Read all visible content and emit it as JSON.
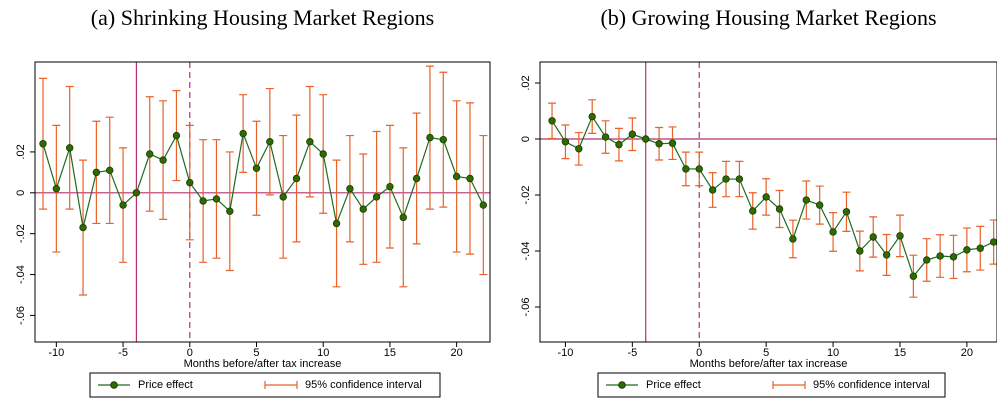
{
  "chart_data": [
    {
      "type": "line",
      "title": "(a) Shrinking Housing Market Regions",
      "x_label": "Months before/after tax increase",
      "x": [
        -11,
        -10,
        -9,
        -8,
        -7,
        -6,
        -5,
        -4,
        -3,
        -2,
        -1,
        0,
        1,
        2,
        3,
        4,
        5,
        6,
        7,
        8,
        9,
        10,
        11,
        12,
        13,
        14,
        15,
        16,
        17,
        18,
        19,
        20,
        21,
        22
      ],
      "series": [
        {
          "name": "Price effect",
          "color": "#1f6b1f",
          "values": [
            0.024,
            0.002,
            0.022,
            -0.017,
            0.01,
            0.011,
            -0.006,
            0,
            0.019,
            0.016,
            0.028,
            0.005,
            -0.004,
            -0.003,
            -0.009,
            0.029,
            0.012,
            0.025,
            -0.002,
            0.007,
            0.025,
            0.019,
            -0.015,
            0.002,
            -0.008,
            -0.002,
            0.003,
            -0.012,
            0.007,
            0.027,
            0.026,
            0.008,
            0.007,
            -0.006
          ]
        },
        {
          "name": "95% confidence interval",
          "color": "#e8622a",
          "errors": [
            0.032,
            0.031,
            0.03,
            0.033,
            0.025,
            0.026,
            0.028,
            0,
            0.028,
            0.029,
            0.022,
            0.028,
            0.03,
            0.029,
            0.029,
            0.019,
            0.023,
            0.026,
            0.03,
            0.031,
            0.027,
            0.029,
            0.031,
            0.026,
            0.027,
            0.032,
            0.03,
            0.034,
            0.032,
            0.035,
            0.033,
            0.037,
            0.037,
            0.034
          ]
        }
      ],
      "xlim": [
        -11.6,
        22.5
      ],
      "xticks": [
        -10,
        -5,
        0,
        5,
        10,
        15,
        20
      ],
      "ylim": [
        -0.073,
        0.064
      ],
      "yticks": [
        {
          "value": -0.06,
          "label": "-.06"
        },
        {
          "value": -0.04,
          "label": "-.04"
        },
        {
          "value": -0.02,
          "label": "-.02"
        },
        0,
        {
          "value": 0.02,
          "label": ".02"
        }
      ],
      "vlines": [
        {
          "value": -4,
          "style": "solid"
        },
        {
          "value": 0,
          "style": "dashed"
        }
      ],
      "hline": 0,
      "refcolor": "#b5306e"
    },
    {
      "type": "line",
      "title": "(b) Growing Housing Market Regions",
      "x_label": "Months before/after tax increase",
      "x": [
        -11,
        -10,
        -9,
        -8,
        -7,
        -6,
        -5,
        -4,
        -3,
        -2,
        -1,
        0,
        1,
        2,
        3,
        4,
        5,
        6,
        7,
        8,
        9,
        10,
        11,
        12,
        13,
        14,
        15,
        16,
        17,
        18,
        19,
        20,
        21,
        22
      ],
      "series": [
        {
          "name": "Price effect",
          "color": "#1f6b1f",
          "values": [
            0.0065,
            -0.001,
            -0.0035,
            0.008,
            0.0007,
            -0.002,
            0.0017,
            0,
            -0.0017,
            -0.0015,
            -0.0107,
            -0.0107,
            -0.0182,
            -0.0143,
            -0.0143,
            -0.0257,
            -0.0207,
            -0.025,
            -0.0357,
            -0.0218,
            -0.0236,
            -0.0332,
            -0.026,
            -0.04,
            -0.035,
            -0.0414,
            -0.0346,
            -0.049,
            -0.0432,
            -0.0418,
            -0.0421,
            -0.0396,
            -0.039,
            -0.0368
          ]
        },
        {
          "name": "95% confidence interval",
          "color": "#e8622a",
          "errors": [
            0.0063,
            0.006,
            0.0058,
            0.006,
            0.0058,
            0.0058,
            0.0058,
            0,
            0.0058,
            0.0058,
            0.006,
            0.006,
            0.0062,
            0.0063,
            0.0063,
            0.0065,
            0.0065,
            0.0066,
            0.0067,
            0.0068,
            0.0068,
            0.0069,
            0.007,
            0.0071,
            0.0072,
            0.0073,
            0.0074,
            0.0075,
            0.0076,
            0.0076,
            0.0077,
            0.0078,
            0.0078,
            0.0079
          ]
        }
      ],
      "xlim": [
        -11.9,
        22.25
      ],
      "xticks": [
        -10,
        -5,
        0,
        5,
        10,
        15,
        20
      ],
      "ylim": [
        -0.0725,
        0.0275
      ],
      "yticks": [
        {
          "value": -0.06,
          "label": "-.06"
        },
        {
          "value": -0.04,
          "label": "-.04"
        },
        {
          "value": -0.02,
          "label": "-.02"
        },
        0,
        {
          "value": 0.02,
          "label": ".02"
        }
      ],
      "vlines": [
        {
          "value": -4,
          "style": "solid"
        },
        {
          "value": 0,
          "style": "dashed"
        }
      ],
      "hline": 0,
      "refcolor": "#b5306e"
    }
  ]
}
